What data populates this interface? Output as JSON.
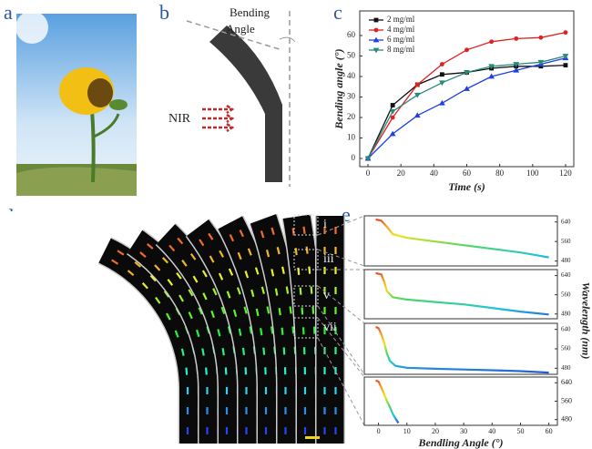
{
  "panel_labels": [
    "a",
    "b",
    "c",
    "d",
    "e"
  ],
  "diagram_b": {
    "angle_label": [
      "Bending",
      "Angle"
    ],
    "stimulus": "NIR"
  },
  "panel_d": {
    "labels": [
      "i",
      "iii",
      "v",
      "vii"
    ]
  },
  "chart_data": [
    {
      "type": "line",
      "x": [
        0,
        15,
        30,
        45,
        60,
        75,
        90,
        105,
        120
      ],
      "xlim": [
        -5,
        125
      ],
      "xticks": [
        0,
        20,
        40,
        60,
        80,
        100,
        120
      ],
      "ylim": [
        -4,
        72
      ],
      "yticks": [
        0,
        10,
        20,
        30,
        40,
        50,
        60
      ],
      "xlabel": "Time (s)",
      "ylabel": "Bending angle (°)",
      "legend": "upper left",
      "series": [
        {
          "name": "2 mg/ml",
          "color": "#111111",
          "marker": "square",
          "values": [
            0,
            26,
            36,
            41,
            42,
            44,
            45,
            45,
            45.5
          ]
        },
        {
          "name": "4 mg/ml",
          "color": "#e32020",
          "marker": "circle",
          "values": [
            0,
            20,
            36,
            46,
            53,
            57,
            58.5,
            59,
            61.5
          ]
        },
        {
          "name": "6 mg/ml",
          "color": "#2040e0",
          "marker": "triangle-up",
          "values": [
            0,
            12,
            21,
            27,
            34,
            40,
            43,
            46,
            49
          ]
        },
        {
          "name": "8 mg/ml",
          "color": "#2a8a7a",
          "marker": "triangle-down",
          "values": [
            0,
            23,
            31,
            37,
            42,
            45,
            46,
            47,
            50
          ]
        }
      ]
    },
    {
      "type": "line",
      "x": [
        -1,
        1,
        3,
        5,
        10,
        20,
        30,
        40,
        50,
        60
      ],
      "values": [
        650,
        645,
        620,
        590,
        575,
        560,
        545,
        530,
        515,
        495
      ],
      "colormap": [
        "#e8262a",
        "#f59a23",
        "#f1e31a",
        "#4cd964",
        "#1fc2e0",
        "#2a3fd0"
      ],
      "xlim": [
        -5,
        63
      ],
      "ylim": [
        460,
        665
      ],
      "yticks": [
        640,
        560,
        480
      ]
    },
    {
      "type": "line",
      "x": [
        -1,
        1,
        2,
        3,
        5,
        10,
        20,
        30,
        40,
        50,
        60
      ],
      "values": [
        650,
        645,
        615,
        575,
        550,
        540,
        530,
        520,
        505,
        490,
        478
      ],
      "colormap": [
        "#e8262a",
        "#f59a23",
        "#f1e31a",
        "#4cd964",
        "#1fc2e0",
        "#2a3fd0"
      ],
      "xlim": [
        -5,
        63
      ],
      "ylim": [
        460,
        665
      ],
      "yticks": [
        640,
        560,
        480
      ],
      "ylabel": "Wavelength (nm)"
    },
    {
      "type": "line",
      "x": [
        -1,
        0,
        1,
        2,
        3,
        4,
        6,
        10,
        20,
        30,
        40,
        50,
        60
      ],
      "values": [
        650,
        645,
        620,
        585,
        540,
        510,
        490,
        482,
        478,
        475,
        472,
        468,
        462
      ],
      "colormap": [
        "#e8262a",
        "#f59a23",
        "#f1e31a",
        "#4cd964",
        "#1fc2e0",
        "#2a3fd0"
      ],
      "xlim": [
        -5,
        63
      ],
      "ylim": [
        455,
        665
      ],
      "yticks": [
        640,
        560,
        480
      ]
    },
    {
      "type": "line",
      "x": [
        -1,
        0,
        1,
        2,
        3,
        4,
        5,
        6,
        7
      ],
      "values": [
        650,
        645,
        620,
        590,
        560,
        535,
        505,
        485,
        465
      ],
      "colormap": [
        "#e8262a",
        "#f59a23",
        "#f1e31a",
        "#4cd964",
        "#1fc2e0",
        "#2a3fd0"
      ],
      "xlim": [
        -5,
        63
      ],
      "ylim": [
        455,
        665
      ],
      "yticks": [
        640,
        560,
        480
      ],
      "xticks": [
        0,
        10,
        20,
        30,
        40,
        50,
        60
      ],
      "xlabel": "Bendling Angle (°)"
    }
  ]
}
